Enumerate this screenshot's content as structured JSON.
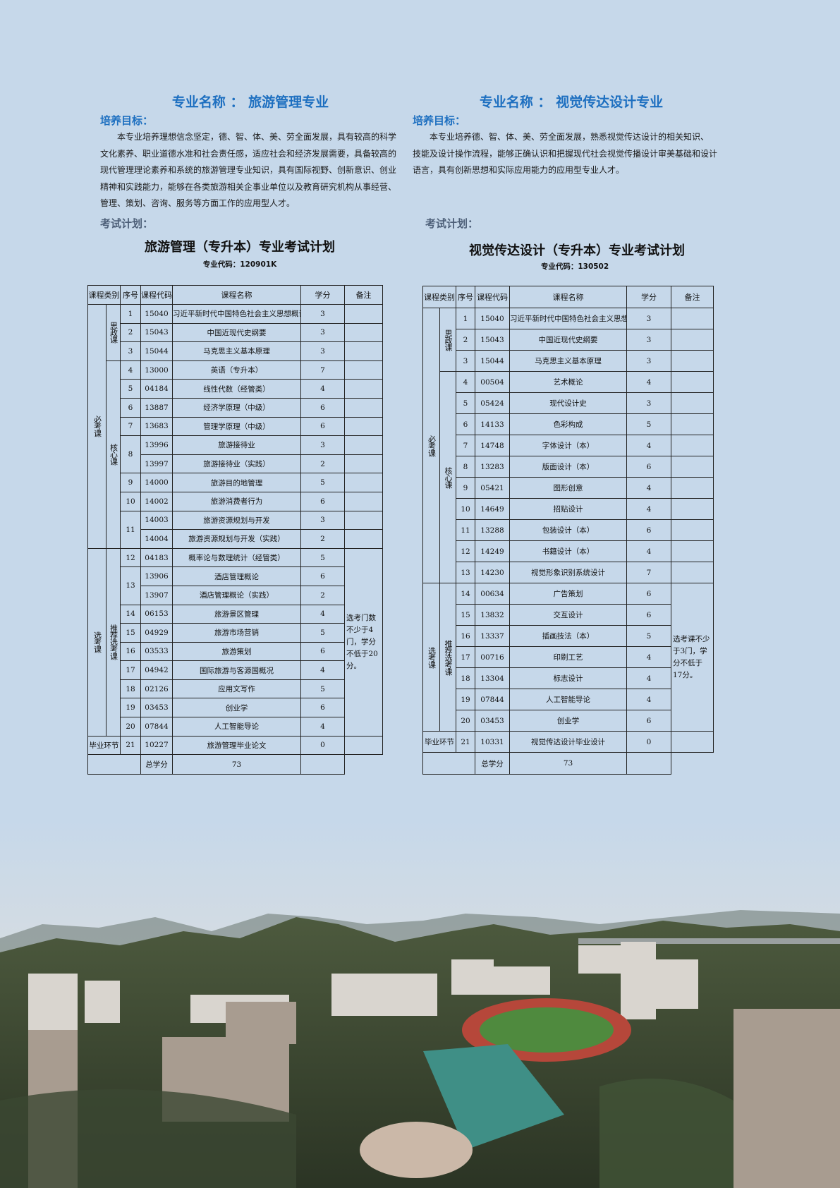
{
  "left": {
    "major_title": "专业名称 ： 旅游管理专业",
    "goal_label": "培养目标：",
    "goal_lines": [
      "本专业培养理想信念坚定，德、智、体、美、劳全面发展，具有较高的科学",
      "文化素养、职业道德水准和社会责任感，适应社会和经济发展需要，具备较高的",
      "现代管理理论素养和系统的旅游管理专业知识，具有国际视野、创新意识、创业",
      "精神和实践能力，能够在各类旅游相关企事业单位以及教育研究机构从事经营、",
      "管理、策划、咨询、服务等方面工作的应用型人才。"
    ],
    "plan_label": "考试计划：",
    "table_title": "旅游管理（专升本）专业考试计划",
    "table_code": "专业代码：120901K",
    "headers": [
      "课程类别",
      "序号",
      "课程代码",
      "课程名称",
      "学分",
      "备注"
    ],
    "rows": [
      {
        "cat1": "必考课",
        "cat2": "思政课",
        "seq": "1",
        "code": "15040",
        "name": "习近平新时代中国特色社会主义思想概论",
        "credit": "3",
        "note": ""
      },
      {
        "cat1": "必考课",
        "cat2": "思政课",
        "seq": "2",
        "code": "15043",
        "name": "中国近现代史纲要",
        "credit": "3",
        "note": ""
      },
      {
        "cat1": "必考课",
        "cat2": "思政课",
        "seq": "3",
        "code": "15044",
        "name": "马克思主义基本原理",
        "credit": "3",
        "note": ""
      },
      {
        "cat1": "必考课",
        "cat2": "核心课",
        "seq": "4",
        "code": "13000",
        "name": "英语（专升本）",
        "credit": "7",
        "note": ""
      },
      {
        "cat1": "必考课",
        "cat2": "核心课",
        "seq": "5",
        "code": "04184",
        "name": "线性代数（经管类）",
        "credit": "4",
        "note": ""
      },
      {
        "cat1": "必考课",
        "cat2": "核心课",
        "seq": "6",
        "code": "13887",
        "name": "经济学原理（中级）",
        "credit": "6",
        "note": ""
      },
      {
        "cat1": "必考课",
        "cat2": "核心课",
        "seq": "7",
        "code": "13683",
        "name": "管理学原理（中级）",
        "credit": "6",
        "note": ""
      },
      {
        "cat1": "必考课",
        "cat2": "核心课",
        "seq": "8",
        "code": "13996",
        "name": "旅游接待业",
        "credit": "3",
        "note": ""
      },
      {
        "cat1": "必考课",
        "cat2": "核心课",
        "seq": "",
        "code": "13997",
        "name": "旅游接待业（实践）",
        "credit": "2",
        "note": ""
      },
      {
        "cat1": "必考课",
        "cat2": "核心课",
        "seq": "9",
        "code": "14000",
        "name": "旅游目的地管理",
        "credit": "5",
        "note": ""
      },
      {
        "cat1": "必考课",
        "cat2": "核心课",
        "seq": "10",
        "code": "14002",
        "name": "旅游消费者行为",
        "credit": "6",
        "note": ""
      },
      {
        "cat1": "必考课",
        "cat2": "核心课",
        "seq": "11",
        "code": "14003",
        "name": "旅游资源规划与开发",
        "credit": "3",
        "note": ""
      },
      {
        "cat1": "必考课",
        "cat2": "核心课",
        "seq": "",
        "code": "14004",
        "name": "旅游资源规划与开发（实践）",
        "credit": "2",
        "note": ""
      },
      {
        "cat1": "选考课",
        "cat2": "推荐选考课",
        "seq": "12",
        "code": "04183",
        "name": "概率论与数理统计（经管类）",
        "credit": "5",
        "note": "选考门数不少于4门，学分不低于20分。"
      },
      {
        "cat1": "选考课",
        "cat2": "推荐选考课",
        "seq": "13",
        "code": "13906",
        "name": "酒店管理概论",
        "credit": "6",
        "note": "选考门数不少于4门，学分不低于20分。"
      },
      {
        "cat1": "选考课",
        "cat2": "推荐选考课",
        "seq": "",
        "code": "13907",
        "name": "酒店管理概论（实践）",
        "credit": "2",
        "note": "选考门数不少于4门，学分不低于20分。"
      },
      {
        "cat1": "选考课",
        "cat2": "推荐选考课",
        "seq": "14",
        "code": "06153",
        "name": "旅游景区管理",
        "credit": "4",
        "note": "选考门数不少于4门，学分不低于20分。"
      },
      {
        "cat1": "选考课",
        "cat2": "推荐选考课",
        "seq": "15",
        "code": "04929",
        "name": "旅游市场营销",
        "credit": "5",
        "note": "选考门数不少于4门，学分不低于20分。"
      },
      {
        "cat1": "选考课",
        "cat2": "推荐选考课",
        "seq": "16",
        "code": "03533",
        "name": "旅游策划",
        "credit": "6",
        "note": "选考门数不少于4门，学分不低于20分。"
      },
      {
        "cat1": "选考课",
        "cat2": "推荐选考课",
        "seq": "17",
        "code": "04942",
        "name": "国际旅游与客源国概况",
        "credit": "4",
        "note": "选考门数不少于4门，学分不低于20分。"
      },
      {
        "cat1": "选考课",
        "cat2": "推荐选考课",
        "seq": "18",
        "code": "02126",
        "name": "应用文写作",
        "credit": "5",
        "note": "选考门数不少于4门，学分不低于20分。"
      },
      {
        "cat1": "选考课",
        "cat2": "推荐选考课",
        "seq": "19",
        "code": "03453",
        "name": "创业学",
        "credit": "6",
        "note": "选考门数不少于4门，学分不低于20分。"
      },
      {
        "cat1": "选考课",
        "cat2": "推荐选考课",
        "seq": "20",
        "code": "07844",
        "name": "人工智能导论",
        "credit": "4",
        "note": "选考门数不少于4门，学分不低于20分。"
      },
      {
        "cat1": "毕业环节",
        "cat2": "毕业环节",
        "seq": "21",
        "code": "10227",
        "name": "旅游管理毕业论文",
        "credit": "0",
        "note": ""
      }
    ],
    "total_label": "总学分",
    "total_credit": "73"
  },
  "right": {
    "major_title": "专业名称 ： 视觉传达设计专业",
    "goal_label": "培养目标：",
    "goal_lines": [
      "本专业培养德、智、体、美、劳全面发展，熟悉视觉传达设计的相关知识、",
      "技能及设计操作流程，能够正确认识和把握现代社会视觉传播设计审美基础和设计",
      "语言，具有创新思想和实际应用能力的应用型专业人才。"
    ],
    "plan_label": "考试计划：",
    "table_title": "视觉传达设计（专升本）专业考试计划",
    "table_code": "专业代码：130502",
    "headers": [
      "课程类别",
      "序号",
      "课程代码",
      "课程名称",
      "学分",
      "备注"
    ],
    "rows": [
      {
        "cat1": "必考课",
        "cat2": "思政课",
        "seq": "1",
        "code": "15040",
        "name": "习近平新时代中国特色社会主义思想概论",
        "credit": "3",
        "note": ""
      },
      {
        "cat1": "必考课",
        "cat2": "思政课",
        "seq": "2",
        "code": "15043",
        "name": "中国近现代史纲要",
        "credit": "3",
        "note": ""
      },
      {
        "cat1": "必考课",
        "cat2": "思政课",
        "seq": "3",
        "code": "15044",
        "name": "马克思主义基本原理",
        "credit": "3",
        "note": ""
      },
      {
        "cat1": "必考课",
        "cat2": "核心课",
        "seq": "4",
        "code": "00504",
        "name": "艺术概论",
        "credit": "4",
        "note": ""
      },
      {
        "cat1": "必考课",
        "cat2": "核心课",
        "seq": "5",
        "code": "05424",
        "name": "现代设计史",
        "credit": "3",
        "note": ""
      },
      {
        "cat1": "必考课",
        "cat2": "核心课",
        "seq": "6",
        "code": "14133",
        "name": "色彩构成",
        "credit": "5",
        "note": ""
      },
      {
        "cat1": "必考课",
        "cat2": "核心课",
        "seq": "7",
        "code": "14748",
        "name": "字体设计（本）",
        "credit": "4",
        "note": ""
      },
      {
        "cat1": "必考课",
        "cat2": "核心课",
        "seq": "8",
        "code": "13283",
        "name": "版面设计（本）",
        "credit": "6",
        "note": ""
      },
      {
        "cat1": "必考课",
        "cat2": "核心课",
        "seq": "9",
        "code": "05421",
        "name": "图形创意",
        "credit": "4",
        "note": ""
      },
      {
        "cat1": "必考课",
        "cat2": "核心课",
        "seq": "10",
        "code": "14649",
        "name": "招贴设计",
        "credit": "4",
        "note": ""
      },
      {
        "cat1": "必考课",
        "cat2": "核心课",
        "seq": "11",
        "code": "13288",
        "name": "包装设计（本）",
        "credit": "6",
        "note": ""
      },
      {
        "cat1": "必考课",
        "cat2": "核心课",
        "seq": "12",
        "code": "14249",
        "name": "书籍设计（本）",
        "credit": "4",
        "note": ""
      },
      {
        "cat1": "必考课",
        "cat2": "核心课",
        "seq": "13",
        "code": "14230",
        "name": "视觉形象识别系统设计",
        "credit": "7",
        "note": ""
      },
      {
        "cat1": "选考课",
        "cat2": "推荐选考课",
        "seq": "14",
        "code": "00634",
        "name": "广告策划",
        "credit": "6",
        "note": "选考课不少于3门，学分不低于17分。"
      },
      {
        "cat1": "选考课",
        "cat2": "推荐选考课",
        "seq": "15",
        "code": "13832",
        "name": "交互设计",
        "credit": "6",
        "note": "选考课不少于3门，学分不低于17分。"
      },
      {
        "cat1": "选考课",
        "cat2": "推荐选考课",
        "seq": "16",
        "code": "13337",
        "name": "插画技法（本）",
        "credit": "5",
        "note": "选考课不少于3门，学分不低于17分。"
      },
      {
        "cat1": "选考课",
        "cat2": "推荐选考课",
        "seq": "17",
        "code": "00716",
        "name": "印刷工艺",
        "credit": "4",
        "note": "选考课不少于3门，学分不低于17分。"
      },
      {
        "cat1": "选考课",
        "cat2": "推荐选考课",
        "seq": "18",
        "code": "13304",
        "name": "标志设计",
        "credit": "4",
        "note": "选考课不少于3门，学分不低于17分。"
      },
      {
        "cat1": "选考课",
        "cat2": "推荐选考课",
        "seq": "19",
        "code": "07844",
        "name": "人工智能导论",
        "credit": "4",
        "note": "选考课不少于3门，学分不低于17分。"
      },
      {
        "cat1": "选考课",
        "cat2": "推荐选考课",
        "seq": "20",
        "code": "03453",
        "name": "创业学",
        "credit": "6",
        "note": "选考课不少于3门，学分不低于17分。"
      },
      {
        "cat1": "毕业环节",
        "cat2": "毕业环节",
        "seq": "21",
        "code": "10331",
        "name": "视觉传达设计毕业设计",
        "credit": "0",
        "note": ""
      }
    ],
    "total_label": "总学分",
    "total_credit": "73"
  },
  "colors": {
    "background": "#c6d8ea",
    "title_blue": "#1d6fc0",
    "plan_label": "#4d5f78"
  }
}
